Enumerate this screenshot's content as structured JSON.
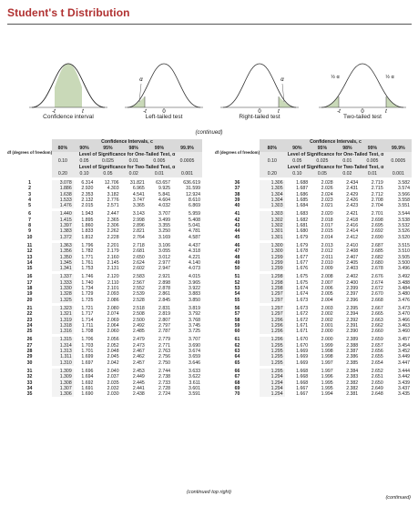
{
  "title": "Student's t Distribution",
  "figures": [
    {
      "caption": "Confidence interval",
      "labels": [
        "-t",
        "t"
      ]
    },
    {
      "caption": "Left-tailed test",
      "labels": [
        "α",
        "-t",
        "0"
      ]
    },
    {
      "caption": "Right-tailed test",
      "labels": [
        "α",
        "0",
        "t"
      ]
    },
    {
      "caption": "Two-tailed test",
      "labels": [
        "½ α",
        "½ α",
        "-t",
        "0",
        "t"
      ]
    }
  ],
  "continued_label": "(continued)",
  "table": {
    "ci_header": "Confidence Intervals, c",
    "one_tail_header": "Level of Significance for One-Tailed Test, α",
    "two_tail_header": "Level of Significance for Two-Tailed Test, α",
    "df_label": "df (degrees of freedom)",
    "ci": [
      "80%",
      "90%",
      "95%",
      "98%",
      "99%",
      "99.9%"
    ],
    "one_tail": [
      "0.10",
      "0.05",
      "0.025",
      "0.01",
      "0.005",
      "0.0005"
    ],
    "two_tail": [
      "0.20",
      "0.10",
      "0.05",
      "0.02",
      "0.01",
      "0.001"
    ],
    "left_rows": [
      [
        "1",
        "3.078",
        "6.314",
        "12.706",
        "31.821",
        "63.657",
        "636.619"
      ],
      [
        "2",
        "1.886",
        "2.920",
        "4.303",
        "6.965",
        "9.925",
        "31.599"
      ],
      [
        "3",
        "1.638",
        "2.353",
        "3.182",
        "4.541",
        "5.841",
        "12.924"
      ],
      [
        "4",
        "1.533",
        "2.132",
        "2.776",
        "3.747",
        "4.604",
        "8.610"
      ],
      [
        "5",
        "1.476",
        "2.015",
        "2.571",
        "3.365",
        "4.032",
        "6.869"
      ],
      [
        "6",
        "1.440",
        "1.943",
        "2.447",
        "3.143",
        "3.707",
        "5.959"
      ],
      [
        "7",
        "1.415",
        "1.895",
        "2.365",
        "2.998",
        "3.499",
        "5.408"
      ],
      [
        "8",
        "1.397",
        "1.860",
        "2.306",
        "2.896",
        "3.355",
        "5.041"
      ],
      [
        "9",
        "1.383",
        "1.833",
        "2.262",
        "2.821",
        "3.250",
        "4.781"
      ],
      [
        "10",
        "1.372",
        "1.812",
        "2.228",
        "2.764",
        "3.169",
        "4.587"
      ],
      [
        "11",
        "1.363",
        "1.796",
        "2.201",
        "2.718",
        "3.106",
        "4.437"
      ],
      [
        "12",
        "1.356",
        "1.782",
        "2.179",
        "2.681",
        "3.055",
        "4.318"
      ],
      [
        "13",
        "1.350",
        "1.771",
        "2.160",
        "2.650",
        "3.012",
        "4.221"
      ],
      [
        "14",
        "1.345",
        "1.761",
        "2.145",
        "2.624",
        "2.977",
        "4.140"
      ],
      [
        "15",
        "1.341",
        "1.753",
        "2.131",
        "2.602",
        "2.947",
        "4.073"
      ],
      [
        "16",
        "1.337",
        "1.746",
        "2.120",
        "2.583",
        "2.921",
        "4.015"
      ],
      [
        "17",
        "1.333",
        "1.740",
        "2.110",
        "2.567",
        "2.898",
        "3.965"
      ],
      [
        "18",
        "1.330",
        "1.734",
        "2.101",
        "2.552",
        "2.878",
        "3.922"
      ],
      [
        "19",
        "1.328",
        "1.729",
        "2.093",
        "2.539",
        "2.861",
        "3.883"
      ],
      [
        "20",
        "1.325",
        "1.725",
        "2.086",
        "2.528",
        "2.845",
        "3.850"
      ],
      [
        "21",
        "1.323",
        "1.721",
        "2.080",
        "2.518",
        "2.831",
        "3.819"
      ],
      [
        "22",
        "1.321",
        "1.717",
        "2.074",
        "2.508",
        "2.819",
        "3.792"
      ],
      [
        "23",
        "1.319",
        "1.714",
        "2.069",
        "2.500",
        "2.807",
        "3.768"
      ],
      [
        "24",
        "1.318",
        "1.711",
        "2.064",
        "2.492",
        "2.797",
        "3.745"
      ],
      [
        "25",
        "1.316",
        "1.708",
        "2.060",
        "2.485",
        "2.787",
        "3.725"
      ],
      [
        "26",
        "1.315",
        "1.706",
        "2.056",
        "2.479",
        "2.779",
        "3.707"
      ],
      [
        "27",
        "1.314",
        "1.703",
        "2.052",
        "2.473",
        "2.771",
        "3.690"
      ],
      [
        "28",
        "1.313",
        "1.701",
        "2.048",
        "2.467",
        "2.763",
        "3.674"
      ],
      [
        "29",
        "1.311",
        "1.699",
        "2.045",
        "2.462",
        "2.756",
        "3.659"
      ],
      [
        "30",
        "1.310",
        "1.697",
        "2.042",
        "2.457",
        "2.750",
        "3.646"
      ],
      [
        "31",
        "1.309",
        "1.696",
        "2.040",
        "2.453",
        "2.744",
        "3.633"
      ],
      [
        "32",
        "1.309",
        "1.694",
        "2.037",
        "2.449",
        "2.738",
        "3.622"
      ],
      [
        "33",
        "1.308",
        "1.692",
        "2.035",
        "2.445",
        "2.733",
        "3.611"
      ],
      [
        "34",
        "1.307",
        "1.691",
        "2.032",
        "2.441",
        "2.728",
        "3.601"
      ],
      [
        "35",
        "1.306",
        "1.690",
        "2.030",
        "2.438",
        "2.724",
        "3.591"
      ]
    ],
    "right_rows": [
      [
        "36",
        "1.306",
        "1.688",
        "2.028",
        "2.434",
        "2.719",
        "3.582"
      ],
      [
        "37",
        "1.305",
        "1.687",
        "2.026",
        "2.431",
        "2.715",
        "3.574"
      ],
      [
        "38",
        "1.304",
        "1.686",
        "2.024",
        "2.429",
        "2.712",
        "3.566"
      ],
      [
        "39",
        "1.304",
        "1.685",
        "2.023",
        "2.426",
        "2.708",
        "3.558"
      ],
      [
        "40",
        "1.303",
        "1.684",
        "2.021",
        "2.423",
        "2.704",
        "3.551"
      ],
      [
        "41",
        "1.303",
        "1.683",
        "2.020",
        "2.421",
        "2.701",
        "3.544"
      ],
      [
        "42",
        "1.302",
        "1.682",
        "2.018",
        "2.418",
        "2.698",
        "3.538"
      ],
      [
        "43",
        "1.302",
        "1.681",
        "2.017",
        "2.416",
        "2.695",
        "3.532"
      ],
      [
        "44",
        "1.301",
        "1.680",
        "2.015",
        "2.414",
        "2.692",
        "3.526"
      ],
      [
        "45",
        "1.301",
        "1.679",
        "2.014",
        "2.412",
        "2.690",
        "3.520"
      ],
      [
        "46",
        "1.300",
        "1.679",
        "2.013",
        "2.410",
        "2.687",
        "3.515"
      ],
      [
        "47",
        "1.300",
        "1.678",
        "2.012",
        "2.408",
        "2.685",
        "3.510"
      ],
      [
        "48",
        "1.299",
        "1.677",
        "2.011",
        "2.407",
        "2.682",
        "3.505"
      ],
      [
        "49",
        "1.299",
        "1.677",
        "2.010",
        "2.405",
        "2.680",
        "3.500"
      ],
      [
        "50",
        "1.299",
        "1.676",
        "2.009",
        "2.403",
        "2.678",
        "3.496"
      ],
      [
        "51",
        "1.298",
        "1.675",
        "2.008",
        "2.402",
        "2.676",
        "3.492"
      ],
      [
        "52",
        "1.298",
        "1.675",
        "2.007",
        "2.400",
        "2.674",
        "3.488"
      ],
      [
        "53",
        "1.298",
        "1.674",
        "2.006",
        "2.399",
        "2.672",
        "3.484"
      ],
      [
        "54",
        "1.297",
        "1.674",
        "2.005",
        "2.397",
        "2.670",
        "3.480"
      ],
      [
        "55",
        "1.297",
        "1.673",
        "2.004",
        "2.396",
        "2.668",
        "3.476"
      ],
      [
        "56",
        "1.297",
        "1.673",
        "2.003",
        "2.395",
        "2.667",
        "3.473"
      ],
      [
        "57",
        "1.297",
        "1.672",
        "2.002",
        "2.394",
        "2.665",
        "3.470"
      ],
      [
        "58",
        "1.296",
        "1.672",
        "2.002",
        "2.392",
        "2.663",
        "3.466"
      ],
      [
        "59",
        "1.296",
        "1.671",
        "2.001",
        "2.391",
        "2.662",
        "3.463"
      ],
      [
        "60",
        "1.296",
        "1.671",
        "2.000",
        "2.390",
        "2.660",
        "3.460"
      ],
      [
        "61",
        "1.296",
        "1.670",
        "2.000",
        "2.389",
        "2.659",
        "3.457"
      ],
      [
        "62",
        "1.295",
        "1.670",
        "1.999",
        "2.388",
        "2.657",
        "3.454"
      ],
      [
        "63",
        "1.295",
        "1.669",
        "1.998",
        "2.387",
        "2.656",
        "3.452"
      ],
      [
        "64",
        "1.295",
        "1.669",
        "1.998",
        "2.386",
        "2.655",
        "3.449"
      ],
      [
        "65",
        "1.295",
        "1.669",
        "1.997",
        "2.385",
        "2.654",
        "3.447"
      ],
      [
        "66",
        "1.295",
        "1.668",
        "1.997",
        "2.384",
        "2.652",
        "3.444"
      ],
      [
        "67",
        "1.294",
        "1.668",
        "1.996",
        "2.383",
        "2.651",
        "3.442"
      ],
      [
        "68",
        "1.294",
        "1.668",
        "1.995",
        "2.382",
        "2.650",
        "3.439"
      ],
      [
        "69",
        "1.294",
        "1.667",
        "1.995",
        "2.382",
        "2.649",
        "3.437"
      ],
      [
        "70",
        "1.294",
        "1.667",
        "1.994",
        "2.381",
        "2.648",
        "3.435"
      ]
    ]
  },
  "footer_left": "(continued top right)",
  "footer_right": "(continued)"
}
